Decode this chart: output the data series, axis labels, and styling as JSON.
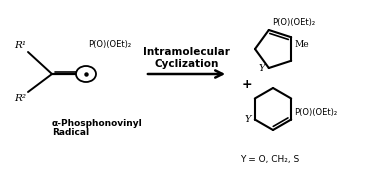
{
  "background_color": "#ffffff",
  "line_color": "#000000",
  "title_text": "Intramolecular\nCyclization",
  "label_alpha_line1": "α-Phosphonovinyl",
  "label_alpha_line2": "Radical",
  "label_po": "P(O)(OEt)₂",
  "label_y_eq": "Y = O, CH₂, S",
  "plus_sign": "+",
  "r1": "R¹",
  "r2": "R²",
  "y_label": "Y",
  "methyl": "Me",
  "fig_width": 3.78,
  "fig_height": 1.77,
  "dpi": 100
}
